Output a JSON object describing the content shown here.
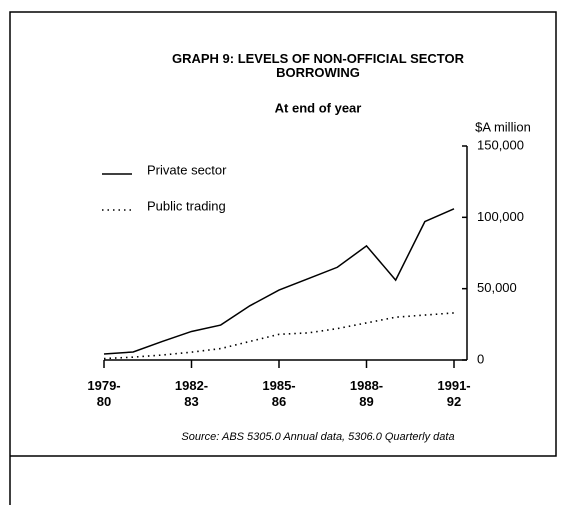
{
  "chart_data": {
    "type": "line",
    "title": "GRAPH 9: LEVELS OF NON-OFFICIAL SECTOR BORROWING",
    "subtitle": "At end of year",
    "y_axis_label": "$A million",
    "source": "Source: ABS 5305.0 Annual data, 5306.0 Quarterly data",
    "categories": [
      "1979-80",
      null,
      null,
      "1982-83",
      null,
      null,
      "1985-86",
      null,
      null,
      "1988-89",
      null,
      null,
      "1991-92"
    ],
    "series": [
      {
        "name": "Private sector",
        "color": "#000000",
        "style": "solid",
        "values": [
          4200,
          5600,
          13000,
          20000,
          24500,
          38000,
          49000,
          57000,
          65000,
          80000,
          56000,
          97000,
          106000
        ]
      },
      {
        "name": "Public trading",
        "color": "#000000",
        "style": "dotted",
        "values": [
          1000,
          2000,
          3500,
          5500,
          8000,
          13000,
          18000,
          19000,
          22000,
          26000,
          30000,
          31500,
          33000
        ]
      }
    ],
    "ylim": [
      0,
      150000
    ],
    "yticks": [
      0,
      {
        "value": 50000,
        "label": "50,000"
      },
      {
        "value": 100000,
        "label": "100,000"
      },
      {
        "value": 150000,
        "label": "150,000"
      }
    ],
    "y_axis_side": "right",
    "grid": false
  }
}
